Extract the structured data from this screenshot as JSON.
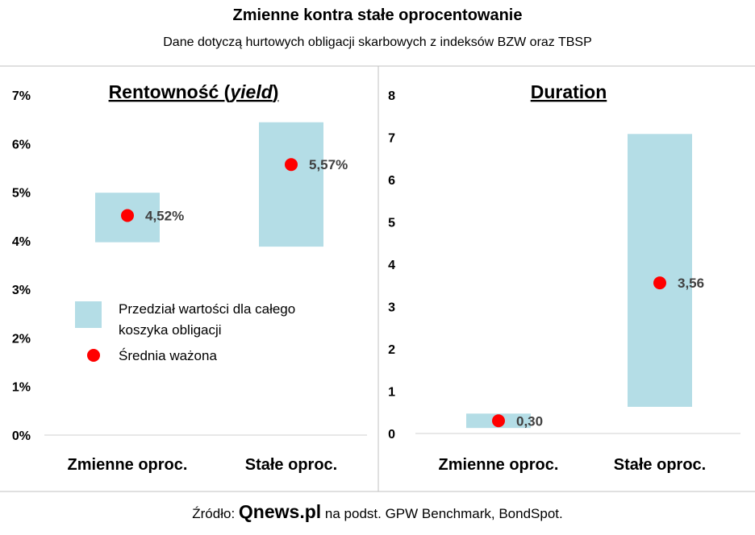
{
  "header": {
    "title": "Zmienne kontra stałe oprocentowanie",
    "subtitle": "Dane dotyczą hurtowych obligacji skarbowych z indeksów BZW oraz TBSP"
  },
  "legend": {
    "range_label_line1": "Przedział wartości dla całego",
    "range_label_line2": "koszyka obligacji",
    "mean_label": "Średnia ważona"
  },
  "footer": {
    "prefix": "Źródło:",
    "brand": "Qnews.pl",
    "suffix": "na podst. GPW Benchmark, BondSpot."
  },
  "colors": {
    "range_fill": "#b4dde6",
    "mean_dot": "#ff0000",
    "value_label": "#404040",
    "divider": "#c0c0c0"
  },
  "chart_data": [
    {
      "type": "range-dot",
      "title_main": "Rentowność (",
      "title_italic": "yield",
      "title_end": ")",
      "categories": [
        "Zmienne oproc.",
        "Stałe oproc."
      ],
      "ranges": [
        [
          3.97,
          4.99
        ],
        [
          3.88,
          6.44
        ]
      ],
      "values": [
        4.52,
        5.57
      ],
      "value_labels": [
        "4,52%",
        "5,57%"
      ],
      "yticks": [
        "0%",
        "1%",
        "2%",
        "3%",
        "4%",
        "5%",
        "6%",
        "7%"
      ],
      "ylim": [
        0,
        7
      ]
    },
    {
      "type": "range-dot",
      "title": "Duration",
      "categories": [
        "Zmienne oproc.",
        "Stałe oproc."
      ],
      "ranges": [
        [
          0.13,
          0.47
        ],
        [
          0.63,
          7.08
        ]
      ],
      "values": [
        0.3,
        3.56
      ],
      "value_labels": [
        "0,30",
        "3,56"
      ],
      "yticks": [
        "0",
        "1",
        "2",
        "3",
        "4",
        "5",
        "6",
        "7",
        "8"
      ],
      "ylim": [
        0,
        8
      ]
    }
  ]
}
